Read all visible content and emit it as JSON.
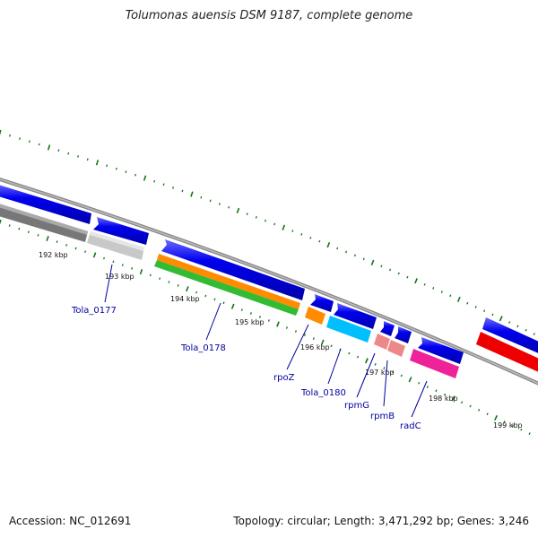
{
  "title": "Tolumonas auensis DSM 9187, complete genome",
  "footer": {
    "accession": "Accession: NC_012691",
    "summary": "Topology: circular; Length: 3,471,292 bp; Genes: 3,246"
  },
  "ticks": [
    {
      "label": "192 kbp"
    },
    {
      "label": "193 kbp"
    },
    {
      "label": "194 kbp"
    },
    {
      "label": "195 kbp"
    },
    {
      "label": "196 kbp"
    },
    {
      "label": "197 kbp"
    },
    {
      "label": "198 kbp"
    },
    {
      "label": "199 kbp"
    }
  ],
  "genes": [
    {
      "name": "Tola_0177"
    },
    {
      "name": "Tola_0178"
    },
    {
      "name": "rpoZ"
    },
    {
      "name": "Tola_0180"
    },
    {
      "name": "rpmG"
    },
    {
      "name": "rpmB"
    },
    {
      "name": "radC"
    }
  ],
  "colors": {
    "cds": "#0000ee",
    "gene_gray": "#777777",
    "gene_silver": "#c8c8c8",
    "gene_orange": "#ff8c00",
    "gene_green": "#33bb33",
    "gene_cyan": "#00bfff",
    "gene_pink": "#ee8888",
    "gene_magenta": "#ee2299",
    "gene_red": "#ee0000",
    "tick_green": "#117711",
    "label_blue": "#0000a0"
  }
}
